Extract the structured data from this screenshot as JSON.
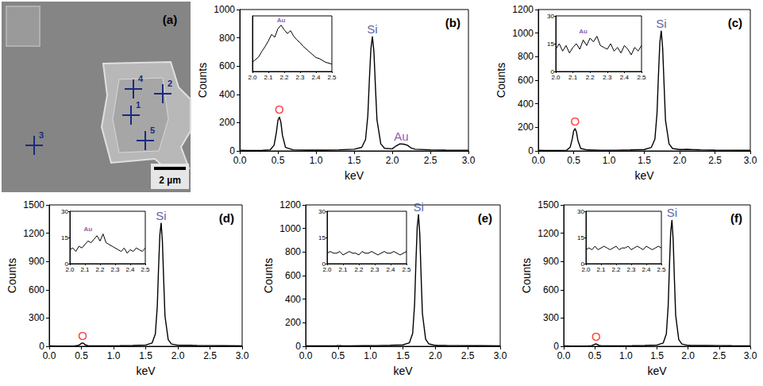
{
  "chart_data": [
    {
      "type": "image",
      "title": "(a)",
      "markers": [
        "1",
        "2",
        "3",
        "4",
        "5"
      ],
      "scale_bar": "2 µm"
    },
    {
      "type": "line",
      "title": "(b)",
      "xlabel": "keV",
      "ylabel": "Counts",
      "color": "#000000",
      "grid": false,
      "x": [
        0,
        0.1,
        0.2,
        0.3,
        0.4,
        0.45,
        0.48,
        0.5,
        0.52,
        0.54,
        0.56,
        0.6,
        0.7,
        0.9,
        1.1,
        1.3,
        1.5,
        1.6,
        1.65,
        1.68,
        1.7,
        1.72,
        1.74,
        1.76,
        1.78,
        1.8,
        1.85,
        1.9,
        2.0,
        2.05,
        2.1,
        2.15,
        2.2,
        2.25,
        2.3,
        2.5,
        2.7,
        3.0
      ],
      "values": [
        5,
        3,
        3,
        4,
        8,
        40,
        130,
        215,
        240,
        200,
        110,
        25,
        8,
        6,
        6,
        8,
        12,
        25,
        80,
        250,
        500,
        720,
        810,
        700,
        450,
        220,
        50,
        18,
        15,
        35,
        50,
        48,
        40,
        20,
        12,
        8,
        6,
        5
      ],
      "xlim": [
        0,
        3
      ],
      "xticks": [
        {
          "value": 0,
          "label": "0.0"
        },
        0.5,
        {
          "value": 1,
          "label": "1.0"
        },
        1.5,
        {
          "value": 2,
          "label": "2.0"
        },
        2.5,
        {
          "value": 3,
          "label": "3.0"
        }
      ],
      "ylim": [
        0,
        1000
      ],
      "yticks": [
        0,
        200,
        400,
        600,
        800,
        1000
      ],
      "annotations": [
        {
          "text": "O",
          "x": 0.52,
          "y": 240,
          "color": "#ff0000"
        },
        {
          "text": "Si",
          "x": 1.74,
          "y": 810,
          "color": "#2b3990"
        },
        {
          "text": "Au",
          "x": 2.12,
          "y": 50,
          "color": "#7030a0"
        }
      ],
      "inset": {
        "type": "line",
        "color": "#000000",
        "tick_labels": "x",
        "x": [
          2.0,
          2.02,
          2.04,
          2.06,
          2.08,
          2.1,
          2.12,
          2.14,
          2.16,
          2.18,
          2.2,
          2.22,
          2.24,
          2.26,
          2.28,
          2.3,
          2.32,
          2.34,
          2.36,
          2.38,
          2.4,
          2.42,
          2.44,
          2.46,
          2.48,
          2.5
        ],
        "values": [
          10,
          13,
          16,
          22,
          27,
          33,
          40,
          37,
          46,
          50,
          45,
          41,
          44,
          38,
          34,
          31,
          27,
          24,
          21,
          18,
          15,
          14,
          12,
          10,
          9,
          8
        ],
        "xlim": [
          2,
          2.5
        ],
        "xticks": [
          {
            "value": 2,
            "label": "2.0"
          },
          2.1,
          2.2,
          2.3,
          2.4,
          {
            "value": 2.5,
            "label": "2.5"
          }
        ],
        "ylim": [
          0,
          60
        ],
        "annotations": [
          {
            "text": "Au",
            "x": 2.18,
            "y": 50,
            "color": "#7030a0"
          }
        ]
      }
    },
    {
      "type": "line",
      "title": "(c)",
      "xlabel": "keV",
      "ylabel": "Counts",
      "color": "#000000",
      "grid": false,
      "x": [
        0,
        0.1,
        0.2,
        0.3,
        0.4,
        0.45,
        0.48,
        0.5,
        0.52,
        0.54,
        0.56,
        0.6,
        0.7,
        0.9,
        1.1,
        1.3,
        1.5,
        1.6,
        1.65,
        1.68,
        1.7,
        1.72,
        1.74,
        1.76,
        1.78,
        1.8,
        1.85,
        1.9,
        2.0,
        2.05,
        2.1,
        2.15,
        2.2,
        2.25,
        2.3,
        2.5,
        2.7,
        3.0
      ],
      "values": [
        5,
        3,
        3,
        4,
        6,
        30,
        100,
        170,
        190,
        160,
        90,
        20,
        8,
        6,
        6,
        8,
        12,
        30,
        100,
        320,
        640,
        920,
        1020,
        870,
        560,
        260,
        60,
        20,
        12,
        12,
        13,
        12,
        11,
        10,
        9,
        7,
        6,
        5
      ],
      "xlim": [
        0,
        3
      ],
      "xticks": [
        {
          "value": 0,
          "label": "0.0"
        },
        0.5,
        {
          "value": 1,
          "label": "1.0"
        },
        1.5,
        {
          "value": 2,
          "label": "2.0"
        },
        2.5,
        {
          "value": 3,
          "label": "3.0"
        }
      ],
      "ylim": [
        0,
        1200
      ],
      "yticks": [
        0,
        200,
        400,
        600,
        800,
        1000,
        1200
      ],
      "annotations": [
        {
          "text": "O",
          "x": 0.52,
          "y": 190,
          "color": "#ff0000"
        },
        {
          "text": "Si",
          "x": 1.74,
          "y": 1020,
          "color": "#2b3990"
        }
      ],
      "inset": {
        "type": "line",
        "color": "#000000",
        "x": [
          2.0,
          2.02,
          2.04,
          2.06,
          2.08,
          2.1,
          2.12,
          2.14,
          2.16,
          2.18,
          2.2,
          2.22,
          2.24,
          2.26,
          2.28,
          2.3,
          2.32,
          2.34,
          2.36,
          2.38,
          2.4,
          2.42,
          2.44,
          2.46,
          2.48,
          2.5
        ],
        "values": [
          12,
          15,
          11,
          14,
          10,
          13,
          15,
          12,
          17,
          14,
          18,
          16,
          19,
          14,
          13,
          12,
          15,
          11,
          13,
          10,
          14,
          12,
          9,
          13,
          11,
          14
        ],
        "xlim": [
          2,
          2.5
        ],
        "xticks": [
          {
            "value": 2,
            "label": "2.0"
          },
          2.1,
          2.2,
          2.3,
          2.4,
          {
            "value": 2.5,
            "label": "2.5"
          }
        ],
        "ylim": [
          0,
          30
        ],
        "yticks": [
          0,
          15,
          30
        ],
        "annotations": [
          {
            "text": "Au",
            "x": 2.16,
            "y": 19,
            "color": "#7030a0"
          }
        ]
      }
    },
    {
      "type": "line",
      "title": "(d)",
      "xlabel": "keV",
      "ylabel": "Counts",
      "color": "#000000",
      "grid": false,
      "x": [
        0,
        0.1,
        0.2,
        0.3,
        0.4,
        0.45,
        0.48,
        0.5,
        0.52,
        0.54,
        0.56,
        0.6,
        0.7,
        0.9,
        1.1,
        1.3,
        1.5,
        1.6,
        1.65,
        1.68,
        1.7,
        1.72,
        1.74,
        1.76,
        1.78,
        1.8,
        1.85,
        1.9,
        2.0,
        2.05,
        2.1,
        2.15,
        2.2,
        2.25,
        2.3,
        2.5,
        2.7,
        3.0
      ],
      "values": [
        5,
        3,
        3,
        3,
        4,
        8,
        20,
        32,
        35,
        28,
        15,
        6,
        5,
        5,
        6,
        8,
        14,
        35,
        130,
        420,
        830,
        1180,
        1310,
        1110,
        700,
        320,
        70,
        24,
        12,
        11,
        12,
        11,
        10,
        9,
        8,
        7,
        6,
        5
      ],
      "xlim": [
        0,
        3
      ],
      "xticks": [
        {
          "value": 0,
          "label": "0.0"
        },
        0.5,
        {
          "value": 1,
          "label": "1.0"
        },
        1.5,
        {
          "value": 2,
          "label": "2.0"
        },
        2.5,
        {
          "value": 3,
          "label": "3.0"
        }
      ],
      "ylim": [
        0,
        1500
      ],
      "yticks": [
        0,
        300,
        600,
        900,
        1200,
        1500
      ],
      "annotations": [
        {
          "text": "O",
          "x": 0.52,
          "y": 35,
          "color": "#ff0000"
        },
        {
          "text": "Si",
          "x": 1.74,
          "y": 1310,
          "color": "#2b3990"
        }
      ],
      "inset": {
        "type": "line",
        "color": "#000000",
        "x": [
          2.0,
          2.02,
          2.04,
          2.06,
          2.08,
          2.1,
          2.12,
          2.14,
          2.16,
          2.18,
          2.2,
          2.22,
          2.24,
          2.26,
          2.28,
          2.3,
          2.32,
          2.34,
          2.36,
          2.38,
          2.4,
          2.42,
          2.44,
          2.46,
          2.48,
          2.5
        ],
        "values": [
          8,
          9,
          7,
          10,
          9,
          11,
          13,
          12,
          14,
          16,
          13,
          17,
          12,
          11,
          10,
          9,
          8,
          7,
          9,
          6,
          8,
          7,
          9,
          8,
          7,
          9
        ],
        "xlim": [
          2,
          2.5
        ],
        "xticks": [
          {
            "value": 2,
            "label": "2.0"
          },
          2.1,
          2.2,
          2.3,
          2.4,
          {
            "value": 2.5,
            "label": "2.5"
          }
        ],
        "ylim": [
          0,
          30
        ],
        "yticks": [
          0,
          15,
          30
        ],
        "annotations": [
          {
            "text": "Au",
            "x": 2.12,
            "y": 17,
            "color": "#7030a0"
          }
        ]
      }
    },
    {
      "type": "line",
      "title": "(e)",
      "xlabel": "keV",
      "ylabel": "Counts",
      "color": "#000000",
      "grid": false,
      "x": [
        0,
        0.1,
        0.2,
        0.3,
        0.4,
        0.45,
        0.48,
        0.5,
        0.52,
        0.54,
        0.56,
        0.6,
        0.7,
        0.9,
        1.1,
        1.3,
        1.5,
        1.6,
        1.65,
        1.68,
        1.7,
        1.72,
        1.74,
        1.76,
        1.78,
        1.8,
        1.85,
        1.9,
        2.0,
        2.05,
        2.1,
        2.15,
        2.2,
        2.25,
        2.3,
        2.5,
        2.7,
        3.0
      ],
      "values": [
        4,
        3,
        3,
        3,
        3,
        4,
        5,
        6,
        6,
        5,
        4,
        4,
        4,
        5,
        6,
        8,
        12,
        30,
        110,
        360,
        710,
        1010,
        1120,
        950,
        600,
        280,
        60,
        20,
        8,
        7,
        7,
        7,
        6,
        6,
        6,
        5,
        5,
        4
      ],
      "xlim": [
        0,
        3
      ],
      "xticks": [
        {
          "value": 0,
          "label": "0.0"
        },
        0.5,
        {
          "value": 1,
          "label": "1.0"
        },
        1.5,
        {
          "value": 2,
          "label": "2.0"
        },
        2.5,
        {
          "value": 3,
          "label": "3.0"
        }
      ],
      "ylim": [
        0,
        1200
      ],
      "yticks": [
        0,
        200,
        400,
        600,
        800,
        1000,
        1200
      ],
      "annotations": [
        {
          "text": "Si",
          "x": 1.74,
          "y": 1120,
          "color": "#2b3990"
        }
      ],
      "inset": {
        "type": "line",
        "color": "#000000",
        "x": [
          2.0,
          2.02,
          2.04,
          2.06,
          2.08,
          2.1,
          2.12,
          2.14,
          2.16,
          2.18,
          2.2,
          2.22,
          2.24,
          2.26,
          2.28,
          2.3,
          2.32,
          2.34,
          2.36,
          2.38,
          2.4,
          2.42,
          2.44,
          2.46,
          2.48,
          2.5
        ],
        "values": [
          6,
          7,
          6,
          6,
          7,
          5,
          6,
          7,
          6,
          6,
          5,
          7,
          6,
          6,
          7,
          6,
          5,
          6,
          7,
          6,
          6,
          7,
          6,
          5,
          6,
          7
        ],
        "xlim": [
          2,
          2.5
        ],
        "xticks": [
          {
            "value": 2,
            "label": "2.0"
          },
          2.1,
          2.2,
          2.3,
          2.4,
          {
            "value": 2.5,
            "label": "2.5"
          }
        ],
        "ylim": [
          0,
          30
        ],
        "yticks": [
          0,
          15,
          30
        ]
      }
    },
    {
      "type": "line",
      "title": "(f)",
      "xlabel": "keV",
      "ylabel": "Counts",
      "color": "#000000",
      "grid": false,
      "x": [
        0,
        0.1,
        0.2,
        0.3,
        0.4,
        0.45,
        0.48,
        0.5,
        0.52,
        0.54,
        0.56,
        0.6,
        0.7,
        0.9,
        1.1,
        1.3,
        1.5,
        1.6,
        1.65,
        1.68,
        1.7,
        1.72,
        1.74,
        1.76,
        1.78,
        1.8,
        1.85,
        1.9,
        2.0,
        2.05,
        2.1,
        2.15,
        2.2,
        2.25,
        2.3,
        2.5,
        2.7,
        3.0
      ],
      "values": [
        4,
        3,
        3,
        3,
        4,
        7,
        15,
        22,
        25,
        20,
        11,
        5,
        5,
        5,
        6,
        8,
        14,
        35,
        130,
        430,
        850,
        1210,
        1340,
        1130,
        710,
        330,
        70,
        24,
        10,
        9,
        9,
        9,
        8,
        8,
        8,
        7,
        6,
        5
      ],
      "xlim": [
        0,
        3
      ],
      "xticks": [
        {
          "value": 0,
          "label": "0.0"
        },
        0.5,
        {
          "value": 1,
          "label": "1.0"
        },
        1.5,
        {
          "value": 2,
          "label": "2.0"
        },
        2.5,
        {
          "value": 3,
          "label": "3.0"
        }
      ],
      "ylim": [
        0,
        1500
      ],
      "yticks": [
        0,
        300,
        600,
        900,
        1200,
        1500
      ],
      "annotations": [
        {
          "text": "O",
          "x": 0.52,
          "y": 25,
          "color": "#ff0000"
        },
        {
          "text": "Si",
          "x": 1.74,
          "y": 1340,
          "color": "#2b3990"
        }
      ],
      "inset": {
        "type": "line",
        "color": "#000000",
        "x": [
          2.0,
          2.02,
          2.04,
          2.06,
          2.08,
          2.1,
          2.12,
          2.14,
          2.16,
          2.18,
          2.2,
          2.22,
          2.24,
          2.26,
          2.28,
          2.3,
          2.32,
          2.34,
          2.36,
          2.38,
          2.4,
          2.42,
          2.44,
          2.46,
          2.48,
          2.5
        ],
        "values": [
          8,
          9,
          8,
          10,
          8,
          9,
          10,
          9,
          8,
          9,
          10,
          8,
          9,
          9,
          10,
          8,
          9,
          10,
          9,
          8,
          10,
          9,
          8,
          9,
          10,
          9
        ],
        "xlim": [
          2,
          2.5
        ],
        "xticks": [
          {
            "value": 2,
            "label": "2.0"
          },
          2.1,
          2.2,
          2.3,
          2.4,
          {
            "value": 2.5,
            "label": "2.5"
          }
        ],
        "ylim": [
          0,
          30
        ],
        "yticks": [
          0,
          15,
          30
        ]
      }
    }
  ]
}
